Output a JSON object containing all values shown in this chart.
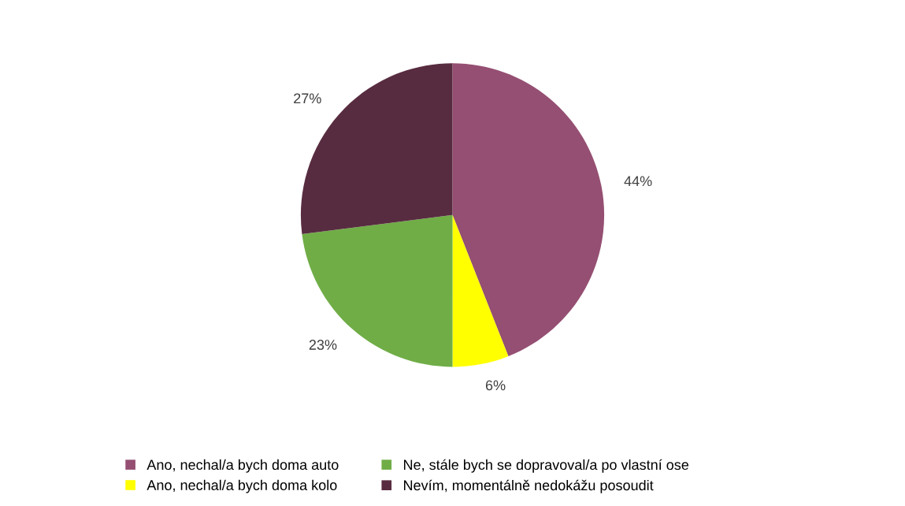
{
  "chart_data": {
    "type": "pie",
    "categories": [
      "Ano, nechal/a bych doma auto",
      "Ano, nechal/a bych doma kolo",
      "Ne, stále bych se dopravoval/a po vlastní ose",
      "Nevím, momentálně nedokážu posoudit"
    ],
    "values": [
      44,
      6,
      23,
      27
    ],
    "value_labels": [
      "44%",
      "6%",
      "23%",
      "27%"
    ],
    "colors": [
      "#954f72",
      "#ffff00",
      "#70ad47",
      "#582c40"
    ],
    "legend": "bottom"
  }
}
